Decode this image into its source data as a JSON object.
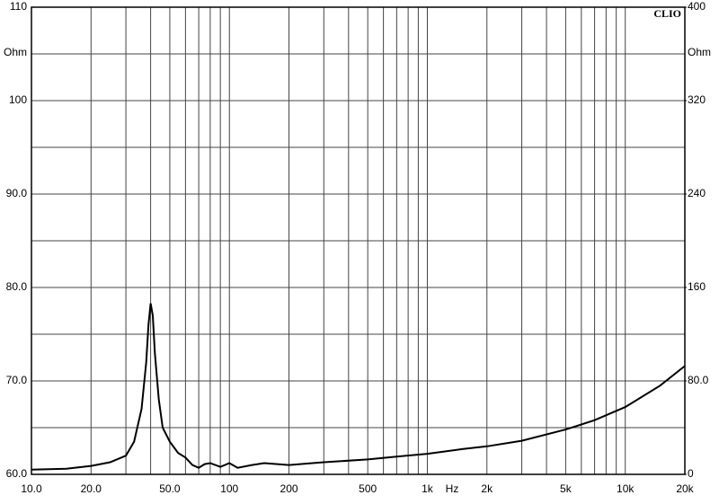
{
  "chart_data": {
    "type": "line",
    "brand": "CLIO",
    "y_unit": "Ohm",
    "y2_unit": "Ohm",
    "x_unit": "Hz",
    "xscale": "log",
    "xlim": [
      10,
      20000
    ],
    "xticks": [
      {
        "value": 10,
        "label": "10.0"
      },
      {
        "value": 20,
        "label": "20.0"
      },
      {
        "value": 50,
        "label": "50.0"
      },
      100,
      200,
      500,
      {
        "value": 1000,
        "label": "1k"
      },
      {
        "value": 2000,
        "label": "2k"
      },
      {
        "value": 5000,
        "label": "5k"
      },
      {
        "value": 10000,
        "label": "10k"
      },
      {
        "value": 20000,
        "label": "20k"
      }
    ],
    "xminorticks": [
      30,
      40,
      60,
      70,
      80,
      90,
      300,
      400,
      600,
      700,
      800,
      900,
      3000,
      4000,
      6000,
      7000,
      8000,
      9000
    ],
    "ylim": [
      60,
      110
    ],
    "yticks": [
      {
        "value": 60,
        "label": "60.0"
      },
      {
        "value": 70,
        "label": "70.0"
      },
      {
        "value": 80,
        "label": "80.0"
      },
      {
        "value": 90,
        "label": "90.0"
      },
      100,
      110
    ],
    "yminorticks": [
      65,
      75,
      85,
      95,
      105
    ],
    "y2lim": [
      0,
      400
    ],
    "y2ticks": [
      0,
      {
        "value": 80,
        "label": "80.0"
      },
      160,
      240,
      320,
      400
    ],
    "grid": true,
    "x": [
      10,
      15,
      20,
      25,
      30,
      33,
      36,
      38,
      39,
      40,
      41,
      42,
      44,
      46,
      50,
      55,
      60,
      65,
      70,
      75,
      80,
      90,
      100,
      110,
      130,
      150,
      200,
      300,
      500,
      700,
      1000,
      1500,
      2000,
      3000,
      5000,
      7000,
      10000,
      15000,
      20000
    ],
    "series": [
      {
        "color": "#000000",
        "values": [
          60.5,
          60.6,
          60.9,
          61.3,
          62.0,
          63.5,
          67,
          72,
          76,
          78.3,
          77,
          73,
          68,
          65,
          63.5,
          62.3,
          61.8,
          61.0,
          60.7,
          61.1,
          61.2,
          60.8,
          61.2,
          60.7,
          61.0,
          61.2,
          61.0,
          61.3,
          61.6,
          61.9,
          62.2,
          62.7,
          63.0,
          63.6,
          64.8,
          65.8,
          67.2,
          69.5,
          71.6
        ]
      }
    ]
  }
}
